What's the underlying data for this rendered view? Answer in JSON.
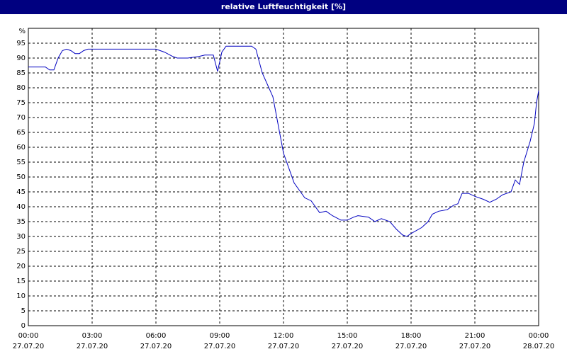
{
  "chart_data": {
    "type": "line",
    "title": "relative Luftfeuchtigkeit [%]",
    "x": [
      0,
      0.8,
      1.0,
      1.2,
      1.4,
      1.6,
      1.8,
      2.0,
      2.2,
      2.4,
      2.6,
      2.8,
      3.0,
      4.0,
      5.0,
      6.0,
      6.4,
      6.8,
      7.0,
      7.5,
      8.0,
      8.3,
      8.7,
      8.9,
      9.1,
      9.3,
      10.0,
      10.5,
      10.7,
      11.0,
      11.5,
      12.0,
      12.3,
      12.5,
      12.8,
      13.0,
      13.3,
      13.7,
      14.0,
      14.3,
      14.7,
      15.0,
      15.3,
      15.5,
      16.0,
      16.3,
      16.6,
      17.0,
      17.3,
      17.6,
      17.8,
      18.0,
      18.5,
      18.8,
      19.0,
      19.3,
      19.7,
      20.0,
      20.2,
      20.4,
      20.7,
      21.0,
      21.4,
      21.7,
      22.0,
      22.3,
      22.7,
      22.9,
      23.1,
      23.3,
      23.6,
      23.8,
      23.9,
      24.0
    ],
    "series": [
      {
        "name": "relative Luftfeuchtigkeit",
        "color": "#0000c0",
        "values": [
          87,
          87,
          86,
          86,
          90,
          92.5,
          93,
          92.5,
          91.5,
          91.5,
          92.5,
          93,
          93,
          93,
          93,
          93,
          92,
          90.5,
          90,
          90,
          90.5,
          91,
          91,
          85.5,
          92,
          94,
          94,
          94,
          93,
          85,
          77,
          58,
          52,
          48,
          45,
          43,
          42,
          38,
          38.5,
          37,
          35.5,
          35.5,
          36.5,
          37,
          36.5,
          35,
          36,
          35,
          32.5,
          30.5,
          30,
          31,
          33,
          35,
          37.5,
          38.5,
          39,
          40.5,
          41,
          44.5,
          44.5,
          43.5,
          42.5,
          41.5,
          42.5,
          44,
          45,
          49,
          47.5,
          55,
          62,
          68,
          75,
          79
        ]
      }
    ],
    "xlim": [
      0,
      24
    ],
    "xticks": [
      {
        "value": 0,
        "label": "00:00",
        "date": "27.07.20"
      },
      {
        "value": 3,
        "label": "03:00",
        "date": "27.07.20"
      },
      {
        "value": 6,
        "label": "06:00",
        "date": "27.07.20"
      },
      {
        "value": 9,
        "label": "09:00",
        "date": "27.07.20"
      },
      {
        "value": 12,
        "label": "12:00",
        "date": "27.07.20"
      },
      {
        "value": 15,
        "label": "15:00",
        "date": "27.07.20"
      },
      {
        "value": 18,
        "label": "18:00",
        "date": "27.07.20"
      },
      {
        "value": 21,
        "label": "21:00",
        "date": "27.07.20"
      },
      {
        "value": 24,
        "label": "00:00",
        "date": "28.07.20"
      }
    ],
    "ylim": [
      0,
      100
    ],
    "yticks": [
      0,
      5,
      10,
      15,
      20,
      25,
      30,
      35,
      40,
      45,
      50,
      55,
      60,
      65,
      70,
      75,
      80,
      85,
      90,
      95,
      {
        "value": 100,
        "label": "%"
      }
    ],
    "grid": true
  }
}
